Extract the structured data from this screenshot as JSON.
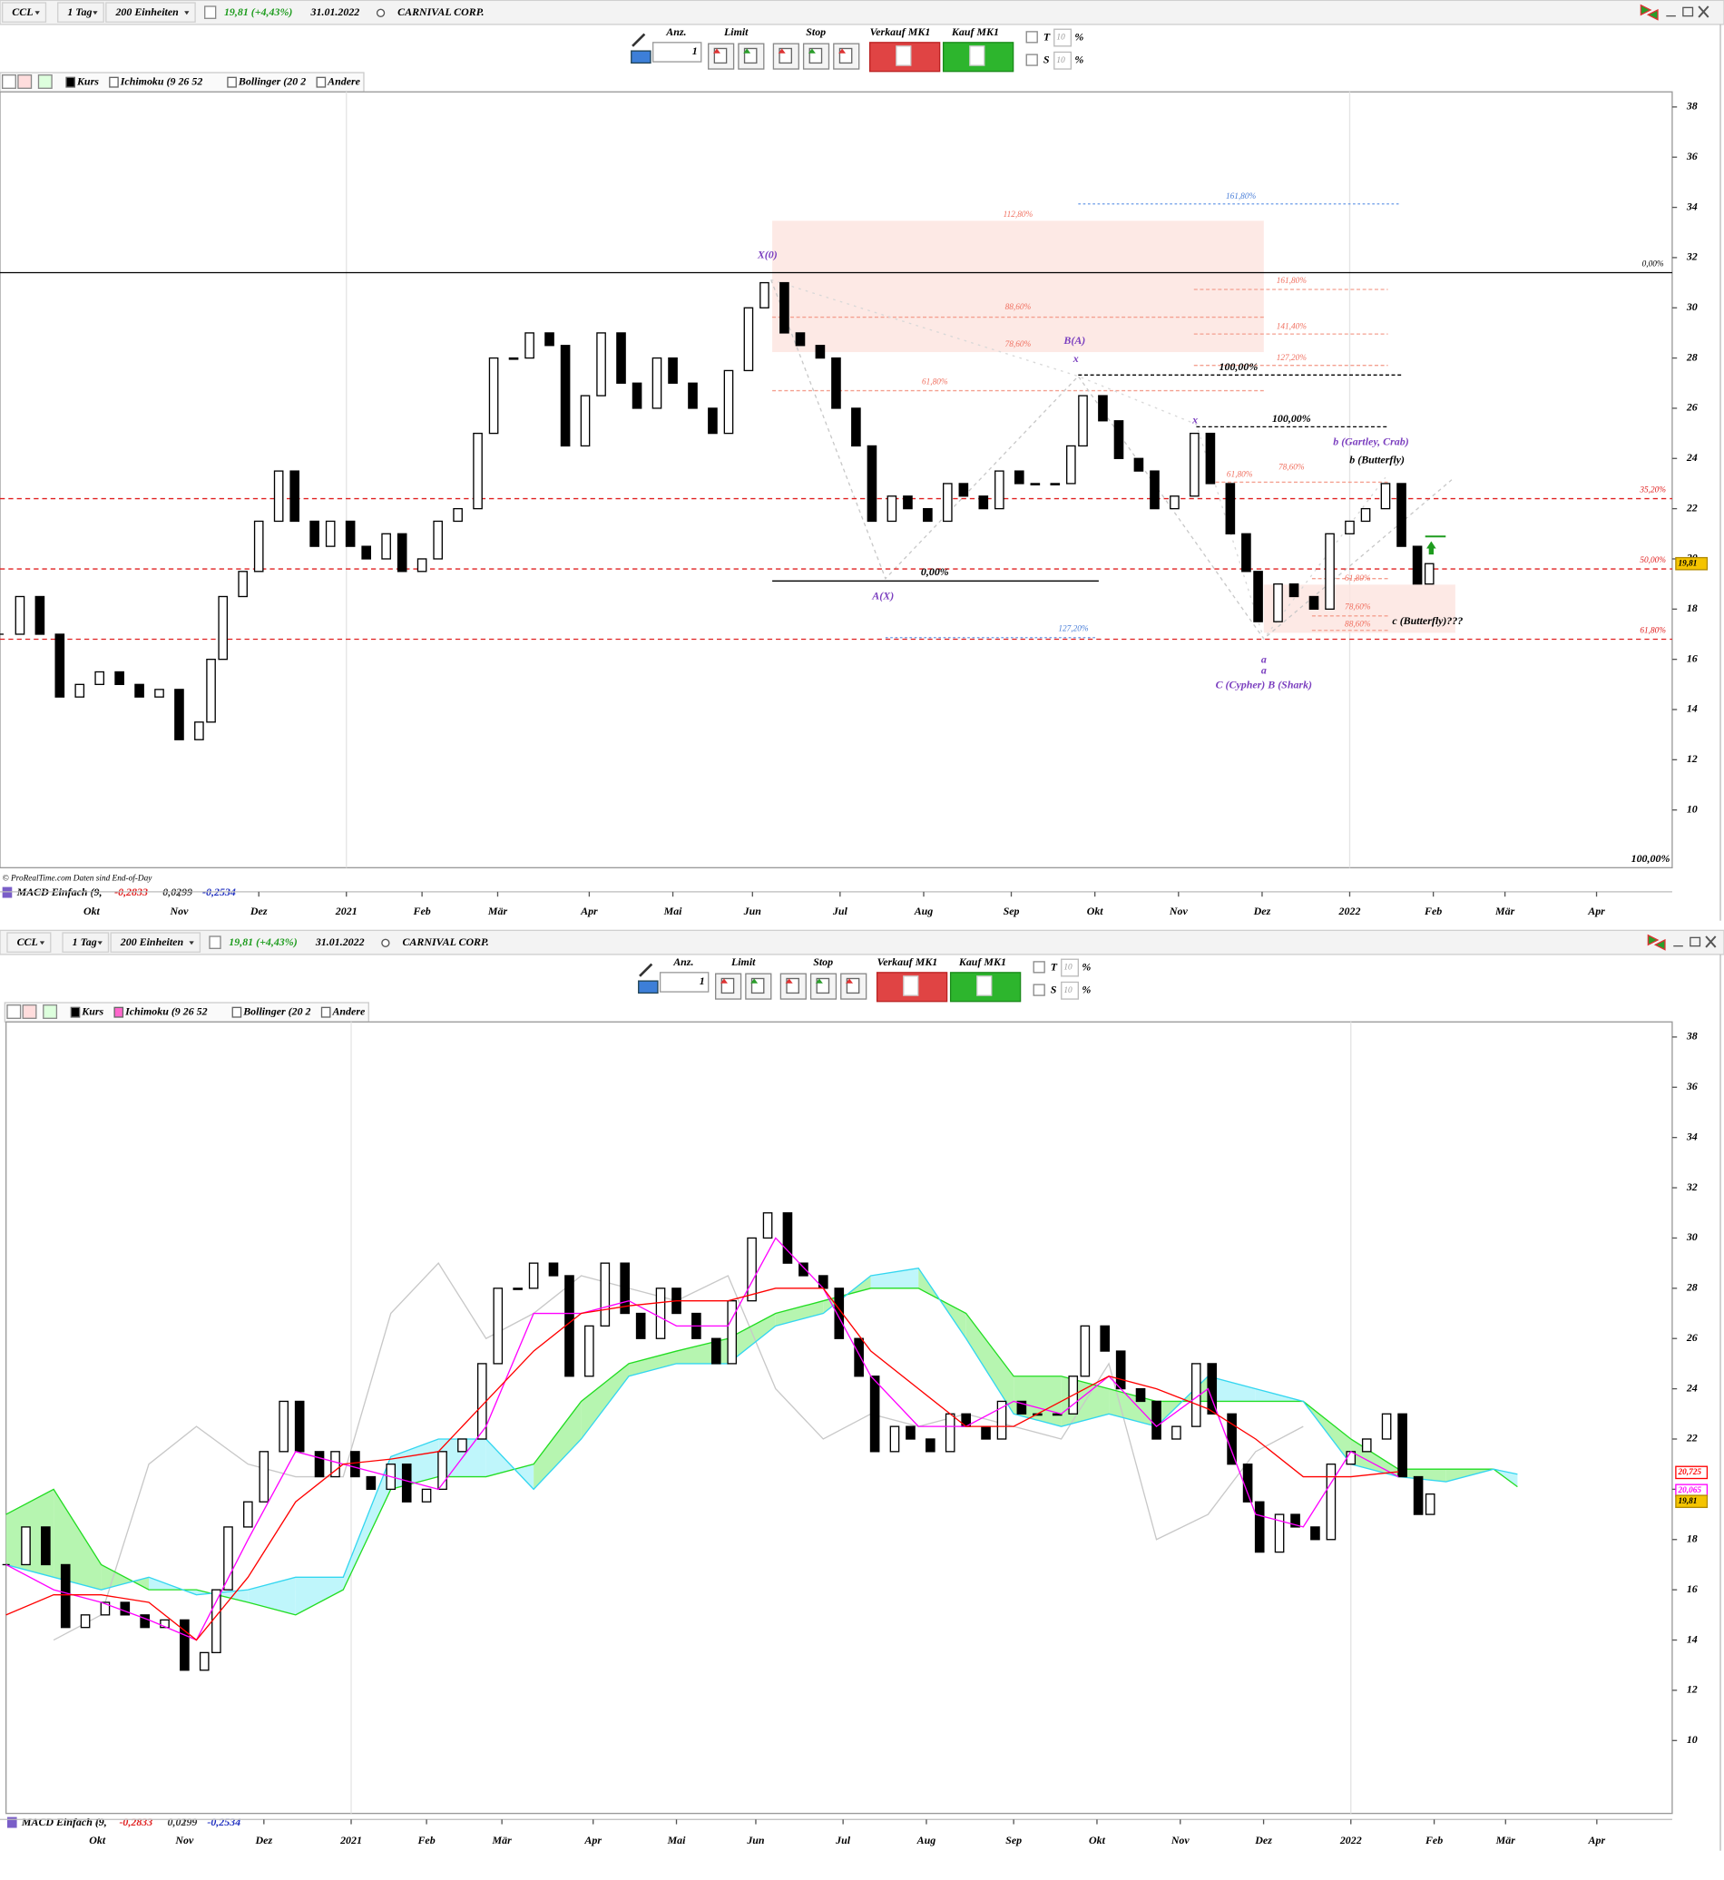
{
  "panels": [
    {
      "symbol": "CCL",
      "interval": "1 Tag",
      "units": "200 Einheiten",
      "quote": "19,81 (+4,43%)",
      "date": "31.01.2022",
      "name": "CARNIVAL CORP.",
      "order": {
        "qty_label": "Anz.",
        "qty": "1",
        "limit": "Limit",
        "stop": "Stop",
        "sell": "Verkauf MK1",
        "buy": "Kauf MK1",
        "t": "T",
        "t_pct": "10",
        "t_unit": "%",
        "s": "S",
        "s_pct": "10",
        "s_unit": "%"
      },
      "legend": [
        "Kurs",
        "Ichimoku (9 26 52",
        "Bollinger (20 2",
        "Andere"
      ],
      "source": "© ProRealTime.com  Daten sind End-of-Day",
      "indicator": {
        "name": "MACD Einfach (9,",
        "values": [
          "-0,2833",
          "0,0299",
          "-0,2534"
        ]
      }
    },
    {
      "symbol": "CCL",
      "interval": "1 Tag",
      "units": "200 Einheiten",
      "quote": "19,81 (+4,43%)",
      "date": "31.01.2022",
      "name": "CARNIVAL CORP.",
      "order": {
        "qty_label": "Anz.",
        "qty": "1",
        "limit": "Limit",
        "stop": "Stop",
        "sell": "Verkauf MK1",
        "buy": "Kauf MK1",
        "t": "T",
        "t_pct": "10",
        "t_unit": "%",
        "s": "S",
        "s_pct": "10",
        "s_unit": "%"
      },
      "legend": [
        "Kurs",
        "Ichimoku (9 26 52",
        "Bollinger (20 2",
        "Andere"
      ],
      "source": "© ProRealTime.com  Daten sind End-of-Day",
      "indicator": {
        "name": "MACD Einfach (9,",
        "values": [
          "-0,2833",
          "0,0299",
          "-0,2534"
        ]
      }
    }
  ],
  "chart_data": [
    {
      "type": "candlestick",
      "x": [
        0,
        5,
        10,
        15,
        20,
        25,
        30,
        35,
        40,
        45,
        50,
        53,
        56,
        61,
        65,
        70,
        74,
        79,
        83,
        88,
        92,
        97,
        101,
        106,
        110,
        115,
        120,
        124,
        129,
        133,
        138,
        142,
        147,
        151,
        156,
        160,
        165,
        169,
        174,
        179,
        183,
        188,
        192,
        197,
        201,
        206,
        210,
        215,
        219,
        224,
        228,
        233,
        238,
        242,
        247,
        251,
        256,
        260,
        265,
        269,
        272,
        277,
        281,
        286,
        290,
        295,
        300,
        304,
        309,
        313,
        316,
        321,
        325,
        330,
        334,
        339,
        343,
        348,
        352,
        356,
        359
      ],
      "values": [
        17,
        18.5,
        17,
        14.5,
        15,
        15.5,
        15,
        14.5,
        14.8,
        12.8,
        13.5,
        16,
        18.5,
        19.5,
        21.5,
        23.5,
        21.5,
        20.5,
        21.5,
        20.5,
        20,
        21,
        19.5,
        20,
        21.5,
        22,
        25,
        28,
        28,
        29,
        28.5,
        24.5,
        26.5,
        29,
        27,
        26,
        28,
        27,
        26,
        25,
        27.5,
        30,
        31,
        29,
        28.5,
        28,
        26,
        24.5,
        21.5,
        22.5,
        22,
        21.5,
        23,
        22.5,
        22,
        23.5,
        23,
        23,
        23,
        24.5,
        26.5,
        25.5,
        24,
        23.5,
        22,
        22.5,
        25,
        23,
        21,
        19.5,
        17.5,
        19,
        18.5,
        18,
        21,
        21.5,
        22,
        23,
        20.5,
        19,
        19.81
      ],
      "up_color": "#ffffff",
      "down_color": "#000000",
      "xlim": [
        0,
        420
      ],
      "ylim": [
        7.7,
        38.6
      ],
      "yticks": [
        10,
        12,
        14,
        16,
        18,
        20,
        22,
        24,
        26,
        28,
        30,
        32,
        34,
        36,
        38
      ],
      "xticks": [
        {
          "value": 23,
          "label": "Okt"
        },
        {
          "value": 45,
          "label": "Nov"
        },
        {
          "value": 65,
          "label": "Dez"
        },
        {
          "value": 87,
          "label": "2021"
        },
        {
          "value": 106,
          "label": "Feb"
        },
        {
          "value": 125,
          "label": "Mär"
        },
        {
          "value": 148,
          "label": "Apr"
        },
        {
          "value": 169,
          "label": "Mai"
        },
        {
          "value": 189,
          "label": "Jun"
        },
        {
          "value": 211,
          "label": "Jul"
        },
        {
          "value": 232,
          "label": "Aug"
        },
        {
          "value": 254,
          "label": "Sep"
        },
        {
          "value": 275,
          "label": "Okt"
        },
        {
          "value": 296,
          "label": "Nov"
        },
        {
          "value": 317,
          "label": "Dez"
        },
        {
          "value": 339,
          "label": "2022"
        },
        {
          "value": 360,
          "label": "Feb"
        },
        {
          "value": 378,
          "label": "Mär"
        },
        {
          "value": 401,
          "label": "Apr"
        }
      ],
      "levels": [
        {
          "price": 31.4,
          "label": "0,00%",
          "color": "#000000"
        },
        {
          "price": 22.4,
          "label": "35,20%",
          "color": "#e02020"
        },
        {
          "price": 19.6,
          "label": "50,00%",
          "color": "#e02020"
        },
        {
          "price": 16.8,
          "label": "61,80%",
          "color": "#e02020"
        }
      ],
      "annotations": [
        {
          "text": "161,80%",
          "color": "#4a7fd8"
        },
        {
          "text": "112,80%",
          "color": "#f07060"
        },
        {
          "text": "X(0)",
          "color": "#7b3fbf"
        },
        {
          "text": "88,60%",
          "color": "#f07060"
        },
        {
          "text": "78,60%",
          "color": "#f07060"
        },
        {
          "text": "61,80%",
          "color": "#f07060"
        },
        {
          "text": "B(A)",
          "color": "#7b3fbf"
        },
        {
          "text": "x",
          "color": "#7b3fbf"
        },
        {
          "text": "161,80%",
          "color": "#f07060"
        },
        {
          "text": "141,40%",
          "color": "#f07060"
        },
        {
          "text": "127,20%",
          "color": "#f07060"
        },
        {
          "text": "100,00%",
          "color": "#000000"
        },
        {
          "text": "100,00%",
          "color": "#000000"
        },
        {
          "text": "b (Gartley, Crab)",
          "color": "#7b3fbf"
        },
        {
          "text": "b (Butterfly)",
          "color": "#000000"
        },
        {
          "text": "x",
          "color": "#7b3fbf"
        },
        {
          "text": "78,60%",
          "color": "#f07060"
        },
        {
          "text": "61,80%",
          "color": "#f07060"
        },
        {
          "text": "61,80%",
          "color": "#f07060"
        },
        {
          "text": "0,00%",
          "color": "#000000"
        },
        {
          "text": "A(X)",
          "color": "#7b3fbf"
        },
        {
          "text": "78,60%",
          "color": "#f07060"
        },
        {
          "text": "88,60%",
          "color": "#f07060"
        },
        {
          "text": "c (Butterfly)???",
          "color": "#000000"
        },
        {
          "text": "127,20%",
          "color": "#4a7fd8"
        },
        {
          "text": "a",
          "color": "#7b3fbf"
        },
        {
          "text": "a",
          "color": "#7b3fbf"
        },
        {
          "text": "C (Cypher) B (Shark)",
          "color": "#7b3fbf"
        },
        {
          "text": "100,00%",
          "color": "#000000"
        }
      ],
      "price_tags": [
        {
          "text": "19,81",
          "color": "#000000"
        }
      ]
    },
    {
      "type": "candlestick",
      "x": [
        0,
        5,
        10,
        15,
        20,
        25,
        30,
        35,
        40,
        45,
        50,
        53,
        56,
        61,
        65,
        70,
        74,
        79,
        83,
        88,
        92,
        97,
        101,
        106,
        110,
        115,
        120,
        124,
        129,
        133,
        138,
        142,
        147,
        151,
        156,
        160,
        165,
        169,
        174,
        179,
        183,
        188,
        192,
        197,
        201,
        206,
        210,
        215,
        219,
        224,
        228,
        233,
        238,
        242,
        247,
        251,
        256,
        260,
        265,
        269,
        272,
        277,
        281,
        286,
        290,
        295,
        300,
        304,
        309,
        313,
        316,
        321,
        325,
        330,
        334,
        339,
        343,
        348,
        352,
        356,
        359
      ],
      "values": [
        17,
        18.5,
        17,
        14.5,
        15,
        15.5,
        15,
        14.5,
        14.8,
        12.8,
        13.5,
        16,
        18.5,
        19.5,
        21.5,
        23.5,
        21.5,
        20.5,
        21.5,
        20.5,
        20,
        21,
        19.5,
        20,
        21.5,
        22,
        25,
        28,
        28,
        29,
        28.5,
        24.5,
        26.5,
        29,
        27,
        26,
        28,
        27,
        26,
        25,
        27.5,
        30,
        31,
        29,
        28.5,
        28,
        26,
        24.5,
        21.5,
        22.5,
        22,
        21.5,
        23,
        22.5,
        22,
        23.5,
        23,
        23,
        23,
        24.5,
        26.5,
        25.5,
        24,
        23.5,
        22,
        22.5,
        25,
        23,
        21,
        19.5,
        17.5,
        19,
        18.5,
        18,
        21,
        21.5,
        22,
        23,
        20.5,
        19,
        19.81
      ],
      "up_color": "#ffffff",
      "down_color": "#000000",
      "xlim": [
        0,
        420
      ],
      "ylim": [
        7.1,
        38.6
      ],
      "yticks": [
        10,
        12,
        14,
        16,
        18,
        20,
        22,
        24,
        26,
        28,
        30,
        32,
        34,
        36,
        38
      ],
      "xticks": [
        {
          "value": 23,
          "label": "Okt"
        },
        {
          "value": 45,
          "label": "Nov"
        },
        {
          "value": 65,
          "label": "Dez"
        },
        {
          "value": 87,
          "label": "2021"
        },
        {
          "value": 106,
          "label": "Feb"
        },
        {
          "value": 125,
          "label": "Mär"
        },
        {
          "value": 148,
          "label": "Apr"
        },
        {
          "value": 169,
          "label": "Mai"
        },
        {
          "value": 189,
          "label": "Jun"
        },
        {
          "value": 211,
          "label": "Jul"
        },
        {
          "value": 232,
          "label": "Aug"
        },
        {
          "value": 254,
          "label": "Sep"
        },
        {
          "value": 275,
          "label": "Okt"
        },
        {
          "value": 296,
          "label": "Nov"
        },
        {
          "value": 317,
          "label": "Dez"
        },
        {
          "value": 339,
          "label": "2022"
        },
        {
          "value": 360,
          "label": "Feb"
        },
        {
          "value": 378,
          "label": "Mär"
        },
        {
          "value": 401,
          "label": "Apr"
        }
      ],
      "ichimoku": {
        "x": [
          0,
          12,
          24,
          36,
          48,
          61,
          73,
          85,
          97,
          109,
          121,
          133,
          145,
          157,
          169,
          182,
          194,
          206,
          218,
          230,
          242,
          254,
          266,
          278,
          290,
          303,
          315,
          327,
          339,
          351,
          363,
          375,
          381
        ],
        "series": [
          {
            "color": "#ff00ff",
            "values": [
              17,
              16,
              15.5,
              14.8,
              14,
              18,
              21.5,
              21,
              20.5,
              20,
              22.5,
              27,
              27,
              27.5,
              26.5,
              26.5,
              30,
              28,
              24.5,
              22.5,
              22.5,
              23.5,
              23,
              24.5,
              22.5,
              24,
              19,
              18.5,
              21.5,
              20.5,
              null,
              null,
              null
            ]
          },
          {
            "color": "#ff0000",
            "values": [
              15,
              15.8,
              15.8,
              15.5,
              14,
              16.5,
              19.5,
              21,
              21.2,
              21.5,
              23.5,
              25.5,
              27,
              27.3,
              27.5,
              27.5,
              28,
              28,
              25.5,
              24,
              22.5,
              22.5,
              23.5,
              24.5,
              24,
              23.2,
              22,
              20.5,
              20.5,
              20.7,
              null,
              null,
              null
            ]
          },
          {
            "color": "#c8c8c8",
            "values": [
              null,
              14,
              15,
              21,
              22.5,
              21,
              20.5,
              20.5,
              27,
              29,
              26,
              27,
              28.5,
              28,
              27.5,
              28.5,
              24,
              22,
              23,
              22.5,
              23,
              22.5,
              22,
              25,
              18,
              19,
              21.5,
              22.5,
              null,
              null,
              null,
              null,
              null
            ]
          },
          {
            "color": "#22dd22",
            "values": [
              19,
              20,
              17,
              16,
              16,
              15.5,
              15,
              16,
              20,
              20.5,
              20.5,
              21,
              23.5,
              25,
              25.5,
              26,
              27,
              27.5,
              28,
              28,
              27,
              24.5,
              24.5,
              24,
              23.5,
              23.5,
              23.5,
              23.5,
              22,
              20.8,
              20.8,
              20.8,
              20.1
            ]
          },
          {
            "color": "#33d6f0",
            "values": [
              17,
              16.5,
              16,
              16.5,
              15.8,
              16,
              16.5,
              16.5,
              21.3,
              22,
              22,
              20,
              22,
              24.5,
              25,
              25,
              26.5,
              27,
              28.5,
              28.8,
              26,
              23,
              22.5,
              23,
              22.5,
              24.5,
              24,
              23.5,
              21,
              20.5,
              20.3,
              20.8,
              20.6
            ]
          }
        ],
        "cloud_up": "#b6f5b0",
        "cloud_down": "#bff6fb"
      },
      "price_tags": [
        {
          "text": "20,725",
          "color": "#ff0000"
        },
        {
          "text": "20,065",
          "color": "#ff00ff"
        },
        {
          "text": "19,81",
          "color": "#000000"
        }
      ]
    }
  ]
}
